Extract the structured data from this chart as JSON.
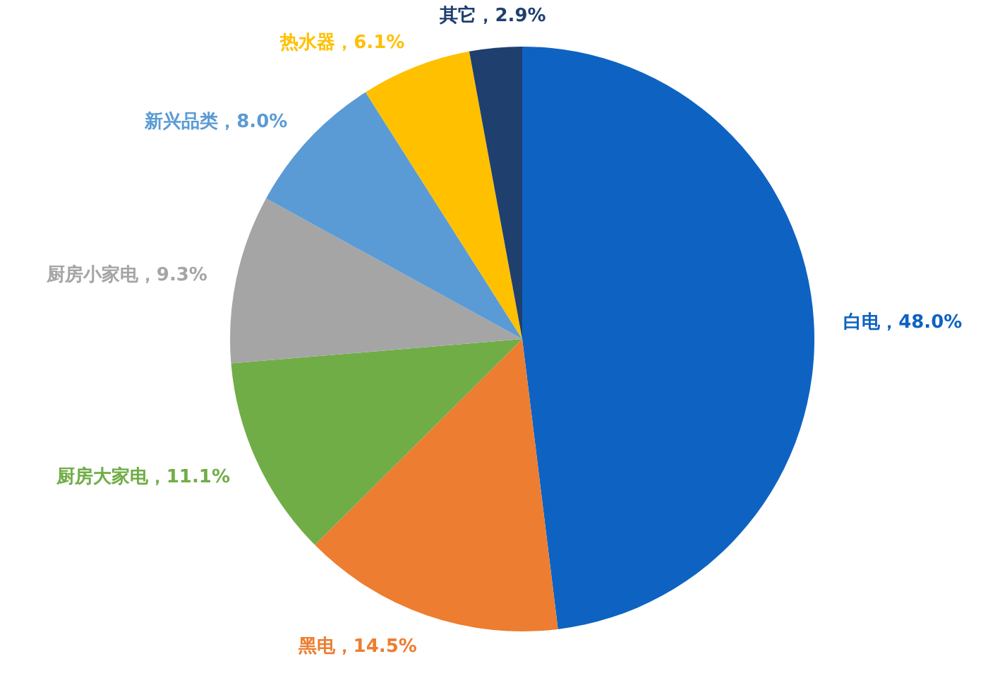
{
  "chart_data": {
    "type": "pie",
    "categories": [
      "白电",
      "黑电",
      "厨房大家电",
      "厨房小家电",
      "新兴品类",
      "热水器",
      "其它"
    ],
    "values": [
      48.0,
      14.5,
      11.1,
      9.3,
      8.0,
      6.1,
      2.9
    ],
    "colors": [
      "#0e63c2",
      "#ed7d31",
      "#70ad47",
      "#a5a5a5",
      "#5b9bd5",
      "#ffc000",
      "#1f3f6e"
    ],
    "value_labels": [
      "48.0%",
      "14.5%",
      "11.1%",
      "9.3%",
      "8.0%",
      "6.1%",
      "2.9%"
    ]
  }
}
